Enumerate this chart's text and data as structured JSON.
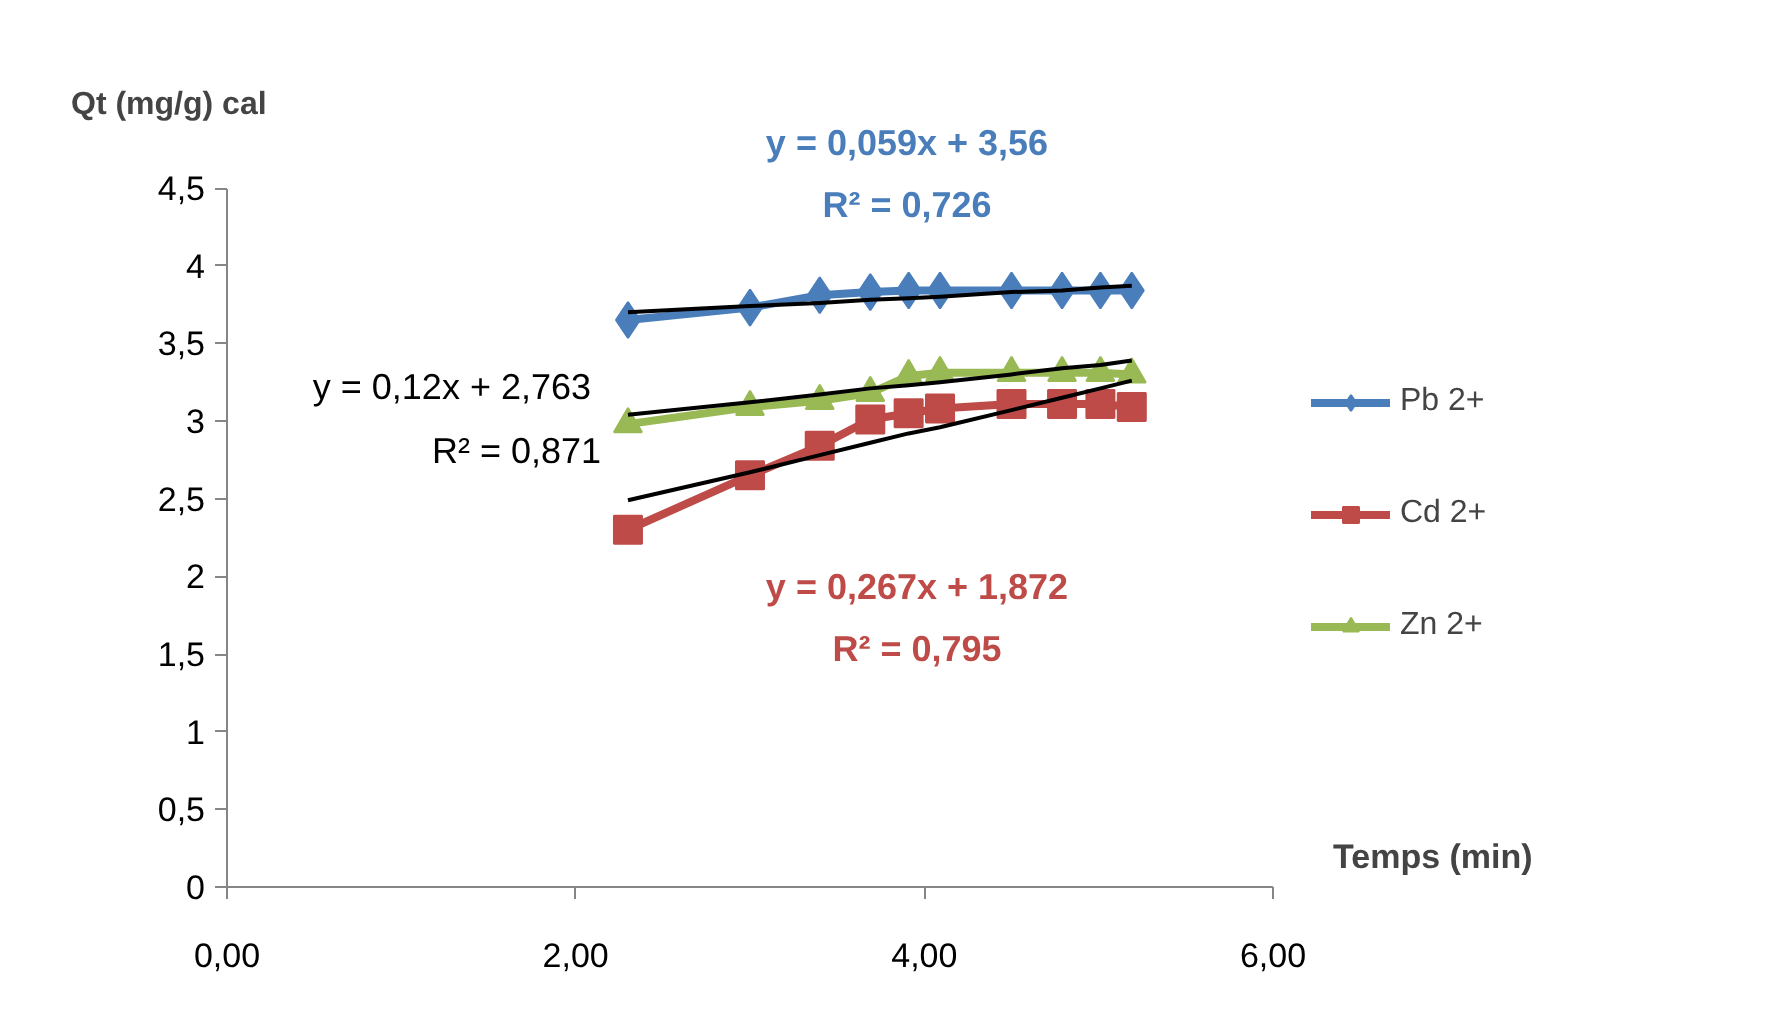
{
  "chart_data": {
    "type": "line",
    "xlabel": "Temps  (min)",
    "ylabel": "Qt (mg/g) cal",
    "x": [
      2.3,
      3.0,
      3.4,
      3.69,
      3.91,
      4.09,
      4.5,
      4.79,
      5.01,
      5.19
    ],
    "series": [
      {
        "name": "Pb 2+",
        "color": "#4a7ebb",
        "marker": "diamond",
        "values": [
          3.65,
          3.73,
          3.81,
          3.83,
          3.84,
          3.84,
          3.84,
          3.84,
          3.84,
          3.84
        ]
      },
      {
        "name": "Cd 2+",
        "color": "#be4b48",
        "marker": "square",
        "values": [
          2.3,
          2.65,
          2.84,
          3.01,
          3.05,
          3.08,
          3.11,
          3.11,
          3.11,
          3.09
        ]
      },
      {
        "name": "Zn 2+",
        "color": "#98b954",
        "marker": "triangle",
        "values": [
          2.98,
          3.09,
          3.13,
          3.18,
          3.29,
          3.31,
          3.31,
          3.31,
          3.31,
          3.3
        ]
      },
      {
        "type": "line",
        "color": "#000000",
        "marker": "none",
        "values": [
          3.7,
          3.74,
          3.76,
          3.78,
          3.79,
          3.8,
          3.83,
          3.84,
          3.86,
          3.87
        ]
      },
      {
        "type": "line",
        "color": "#000000",
        "marker": "none",
        "values": [
          2.49,
          2.67,
          2.78,
          2.86,
          2.92,
          2.96,
          3.07,
          3.15,
          3.21,
          3.26
        ]
      },
      {
        "type": "line",
        "color": "#000000",
        "marker": "none",
        "values": [
          3.04,
          3.12,
          3.17,
          3.21,
          3.23,
          3.25,
          3.3,
          3.34,
          3.36,
          3.39
        ]
      }
    ],
    "xlim": [
      0,
      6
    ],
    "ylim": [
      0,
      4.5
    ],
    "xticks": [
      {
        "value": 0,
        "label": "0,00"
      },
      {
        "value": 2,
        "label": "2,00"
      },
      {
        "value": 4,
        "label": "4,00"
      },
      {
        "value": 6,
        "label": "6,00"
      }
    ],
    "yticks": [
      0,
      {
        "value": 0.5,
        "label": "0,5"
      },
      1,
      {
        "value": 1.5,
        "label": "1,5"
      },
      2,
      {
        "value": 2.5,
        "label": "2,5"
      },
      3,
      {
        "value": 3.5,
        "label": "3,5"
      },
      4,
      {
        "value": 4.5,
        "label": "4,5"
      }
    ],
    "annotations": [
      "y = 0,059x + 3,56",
      "R² = 0,726",
      "y = 0,12x + 2,763",
      "R² = 0,871",
      "y = 0,267x + 1,872",
      "R² = 0,795"
    ],
    "grid": false,
    "legend": "right"
  }
}
